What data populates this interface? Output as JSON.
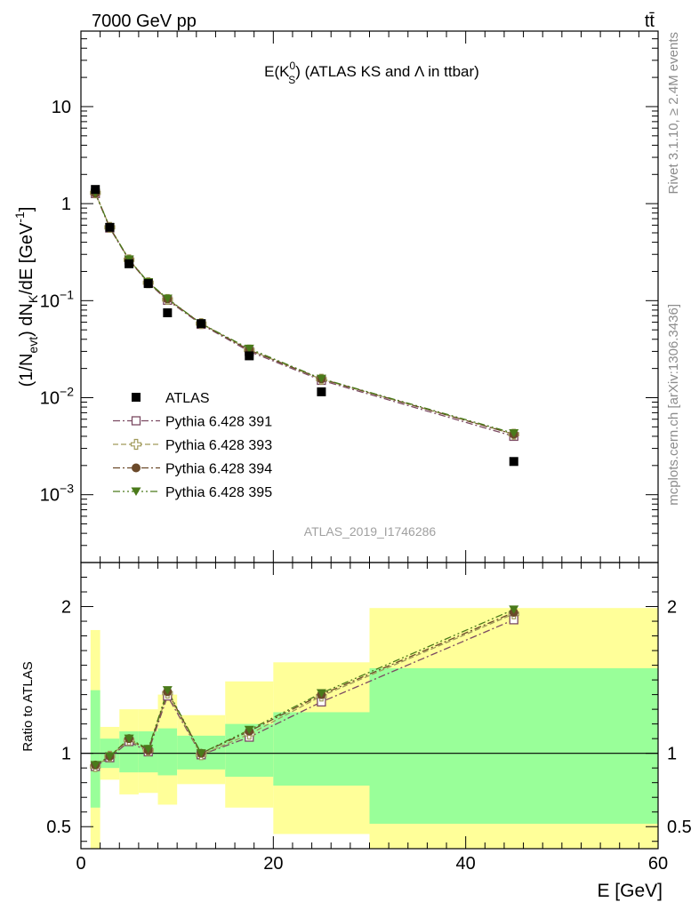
{
  "header": {
    "left": "7000 GeV pp",
    "right": "tt̄"
  },
  "side_labels": {
    "rivet": "Rivet 3.1.10, ≥ 2.4M events",
    "mcplots": "mcplots.cern.ch [arXiv:1306.3436]"
  },
  "chart_data": [
    {
      "type": "scatter",
      "title_main": "E(K",
      "title_sup": "0",
      "title_sub": "S",
      "title_rest": ") (ATLAS KS and Λ in ttbar)",
      "ylabel_a": "(1/N",
      "ylabel_sub1": "evt",
      "ylabel_b": ") dN",
      "ylabel_sub2": "K",
      "ylabel_c": "/dE [GeV",
      "ylabel_sup": "-1",
      "ylabel_d": "]",
      "yscale": "log",
      "ylim": [
        0.0002,
        60
      ],
      "xlim": [
        0,
        60
      ],
      "y_ticks": [
        {
          "value": 10,
          "base": "10",
          "exp": ""
        },
        {
          "value": 1,
          "base": "1",
          "exp": ""
        },
        {
          "value": 0.1,
          "base": "10",
          "exp": "−1"
        },
        {
          "value": 0.01,
          "base": "10",
          "exp": "−2"
        },
        {
          "value": 0.001,
          "base": "10",
          "exp": "−3"
        }
      ],
      "watermark": "ATLAS_2019_I1746286",
      "legend_position": "bottom-left",
      "series": [
        {
          "name": "ATLAS",
          "marker": "filled-square",
          "color": "#000000",
          "x": [
            1.5,
            3,
            5,
            7,
            9,
            12.5,
            17.5,
            25,
            45
          ],
          "y": [
            1.4,
            0.57,
            0.24,
            0.15,
            0.075,
            0.058,
            0.027,
            0.0115,
            0.0022
          ]
        },
        {
          "name": "Pythia 6.428 391",
          "marker": "open-square",
          "color": "#7b4a62",
          "dash": "8,3,2,3",
          "x": [
            1.5,
            3,
            5,
            7,
            9,
            12.5,
            17.5,
            25,
            45
          ],
          "y": [
            1.27,
            0.56,
            0.262,
            0.152,
            0.101,
            0.057,
            0.03,
            0.0151,
            0.004
          ]
        },
        {
          "name": "Pythia 6.428 393",
          "marker": "open-cross",
          "color": "#a09a5a",
          "dash": "6,3",
          "x": [
            1.5,
            3,
            5,
            7,
            9,
            12.5,
            17.5,
            25,
            45
          ],
          "y": [
            1.29,
            0.57,
            0.264,
            0.153,
            0.103,
            0.058,
            0.031,
            0.0155,
            0.0042
          ]
        },
        {
          "name": "Pythia 6.428 394",
          "marker": "filled-circle",
          "color": "#6b4a2a",
          "dash": "8,3,2,3",
          "x": [
            1.5,
            3,
            5,
            7,
            9,
            12.5,
            17.5,
            25,
            45
          ],
          "y": [
            1.28,
            0.57,
            0.265,
            0.154,
            0.104,
            0.058,
            0.031,
            0.0156,
            0.0042
          ]
        },
        {
          "name": "Pythia 6.428 395",
          "marker": "filled-triangle-down",
          "color": "#4a7a1a",
          "dash": "8,3,2,3,2,3",
          "x": [
            1.5,
            3,
            5,
            7,
            9,
            12.5,
            17.5,
            25,
            45
          ],
          "y": [
            1.29,
            0.57,
            0.266,
            0.155,
            0.105,
            0.058,
            0.032,
            0.0157,
            0.0043
          ]
        }
      ]
    },
    {
      "type": "scatter",
      "ylabel": "Ratio to ATLAS",
      "xlabel": "E [GeV]",
      "ylim": [
        0.35,
        2.3
      ],
      "xlim": [
        0,
        60
      ],
      "x_ticks": [
        0,
        20,
        40,
        60
      ],
      "y_ticks": [
        0.5,
        1,
        2
      ],
      "reference_line": 1,
      "bins": [
        {
          "xlo": 1,
          "xhi": 2,
          "inner": [
            0.63,
            1.43
          ],
          "outer": [
            0.35,
            1.84
          ]
        },
        {
          "xlo": 2,
          "xhi": 4,
          "inner": [
            0.9,
            1.1
          ],
          "outer": [
            0.82,
            1.18
          ]
        },
        {
          "xlo": 4,
          "xhi": 6,
          "inner": [
            0.87,
            1.15
          ],
          "outer": [
            0.72,
            1.3
          ]
        },
        {
          "xlo": 6,
          "xhi": 8,
          "inner": [
            0.87,
            1.15
          ],
          "outer": [
            0.73,
            1.3
          ]
        },
        {
          "xlo": 8,
          "xhi": 10,
          "inner": [
            0.85,
            1.17
          ],
          "outer": [
            0.65,
            1.4
          ]
        },
        {
          "xlo": 10,
          "xhi": 15,
          "inner": [
            0.89,
            1.12
          ],
          "outer": [
            0.79,
            1.26
          ]
        },
        {
          "xlo": 15,
          "xhi": 20,
          "inner": [
            0.84,
            1.2
          ],
          "outer": [
            0.63,
            1.49
          ]
        },
        {
          "xlo": 20,
          "xhi": 30,
          "inner": [
            0.78,
            1.28
          ],
          "outer": [
            0.45,
            1.62
          ]
        },
        {
          "xlo": 30,
          "xhi": 60,
          "inner": [
            0.52,
            1.58
          ],
          "outer": [
            0.35,
            1.99
          ]
        }
      ],
      "series": [
        {
          "name": "Pythia 6.428 391",
          "x": [
            1.5,
            3,
            5,
            7,
            9,
            12.5,
            17.5,
            25,
            45
          ],
          "y": [
            0.91,
            0.97,
            1.08,
            1.01,
            1.39,
            0.99,
            1.11,
            1.35,
            1.91
          ]
        },
        {
          "name": "Pythia 6.428 393",
          "x": [
            1.5,
            3,
            5,
            7,
            9,
            12.5,
            17.5,
            25,
            45
          ],
          "y": [
            0.91,
            0.98,
            1.09,
            1.02,
            1.41,
            0.99,
            1.13,
            1.39,
            1.95
          ]
        },
        {
          "name": "Pythia 6.428 394",
          "x": [
            1.5,
            3,
            5,
            7,
            9,
            12.5,
            17.5,
            25,
            45
          ],
          "y": [
            0.92,
            0.98,
            1.1,
            1.02,
            1.42,
            1.0,
            1.15,
            1.4,
            1.96
          ]
        },
        {
          "name": "Pythia 6.428 395",
          "x": [
            1.5,
            3,
            5,
            7,
            9,
            12.5,
            17.5,
            25,
            45
          ],
          "y": [
            0.92,
            0.98,
            1.1,
            1.03,
            1.43,
            1.0,
            1.16,
            1.41,
            1.98
          ]
        }
      ]
    }
  ]
}
